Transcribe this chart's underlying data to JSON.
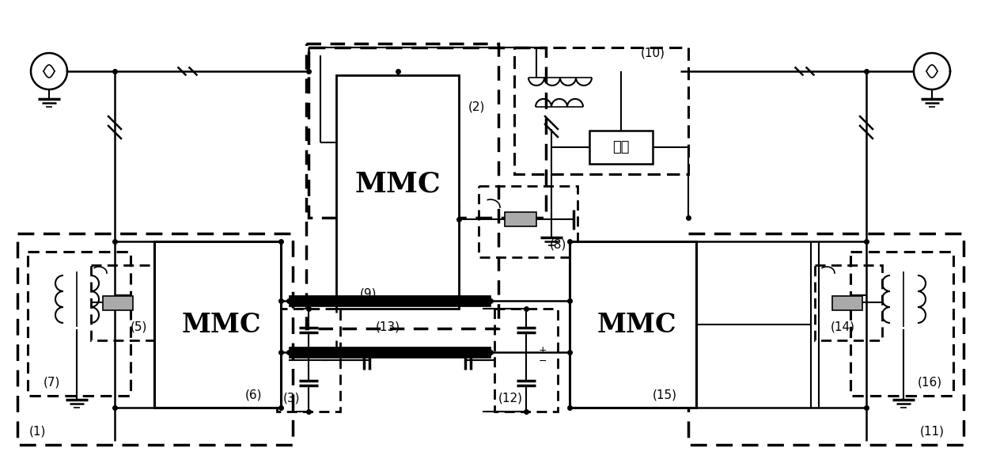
{
  "bg": "#ffffff",
  "load_label": "负载",
  "fig_w": 12.4,
  "fig_h": 5.85,
  "dpi": 100,
  "numbers": {
    "n1": "(1)",
    "n2": "(2)",
    "n3": "(3)",
    "n5": "(5)",
    "n6": "(6)",
    "n7": "(7)",
    "n8": "(8)",
    "n9": "(9)",
    "n10": "(10)",
    "n11": "(11)",
    "n12": "(12)",
    "n13": "(13)",
    "n14": "(14)",
    "n15": "(15)",
    "n16": "(16)"
  }
}
